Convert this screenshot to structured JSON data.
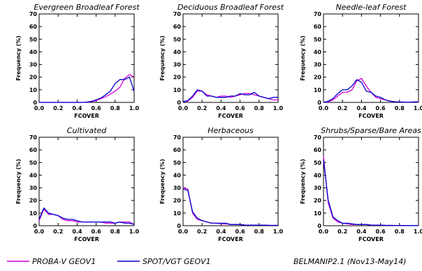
{
  "footer": {
    "series_labels": [
      "PROBA-V GEOV1",
      "SPOT/VGT GEOV1"
    ],
    "dataset_note": "BELMANIP2.1 (Nov13-May14)"
  },
  "colors": {
    "proba_v": "#d400d4",
    "spot_vgt": "#0000cc",
    "axes": "#000000"
  },
  "chart_data": [
    {
      "type": "line",
      "title": "Evergreen Broadleaf Forest",
      "xlabel": "FCOVER",
      "ylabel": "Frequency (%)",
      "xlim": [
        0,
        1
      ],
      "ylim": [
        0,
        70
      ],
      "xticks": [
        "0.0",
        "0.2",
        "0.4",
        "0.6",
        "0.8",
        "1.0"
      ],
      "yticks": [
        "0",
        "10",
        "20",
        "30",
        "40",
        "50",
        "60",
        "70"
      ],
      "x": [
        0,
        0.05,
        0.1,
        0.15,
        0.2,
        0.25,
        0.3,
        0.35,
        0.4,
        0.45,
        0.5,
        0.55,
        0.6,
        0.65,
        0.7,
        0.75,
        0.8,
        0.85,
        0.9,
        0.95,
        1.0
      ],
      "series": [
        {
          "name": "PROBA-V GEOV1",
          "values": [
            0,
            0,
            0,
            0,
            0,
            0,
            0,
            0,
            0,
            0,
            0.2,
            0.5,
            1.5,
            3,
            4.5,
            6.5,
            9,
            12,
            19,
            22,
            20
          ]
        },
        {
          "name": "SPOT/VGT GEOV1",
          "values": [
            0,
            0,
            0,
            0,
            0,
            0,
            0,
            0,
            0,
            0,
            0.3,
            0.8,
            2,
            3.5,
            6,
            9,
            15,
            18,
            18,
            20,
            9
          ]
        }
      ]
    },
    {
      "type": "line",
      "title": "Deciduous Broadleaf Forest",
      "xlabel": "FCOVER",
      "ylabel": "Frequency (%)",
      "xlim": [
        0,
        1
      ],
      "ylim": [
        0,
        70
      ],
      "xticks": [
        "0.0",
        "0.2",
        "0.4",
        "0.6",
        "0.8",
        "1.0"
      ],
      "yticks": [
        "0",
        "10",
        "20",
        "30",
        "40",
        "50",
        "60",
        "70"
      ],
      "x": [
        0,
        0.05,
        0.1,
        0.15,
        0.2,
        0.25,
        0.3,
        0.35,
        0.4,
        0.45,
        0.5,
        0.55,
        0.6,
        0.65,
        0.7,
        0.75,
        0.8,
        0.85,
        0.9,
        0.95,
        1.0
      ],
      "series": [
        {
          "name": "PROBA-V GEOV1",
          "values": [
            0.5,
            1,
            4,
            9,
            9,
            6,
            5,
            4,
            5,
            5,
            4,
            5,
            6,
            7,
            7,
            6,
            5,
            4,
            3,
            2,
            2
          ]
        },
        {
          "name": "SPOT/VGT GEOV1",
          "values": [
            0.5,
            1.5,
            5,
            10,
            9,
            5,
            5,
            4,
            4,
            4,
            5,
            5,
            7,
            6,
            6,
            8,
            5,
            4,
            3,
            4,
            4
          ]
        }
      ]
    },
    {
      "type": "line",
      "title": "Needle-leaf Forest",
      "xlabel": "FCOVER",
      "ylabel": "Frequency (%)",
      "xlim": [
        0,
        1
      ],
      "ylim": [
        0,
        70
      ],
      "xticks": [
        "0.0",
        "0.2",
        "0.4",
        "0.6",
        "0.8",
        "1.0"
      ],
      "yticks": [
        "0",
        "10",
        "20",
        "30",
        "40",
        "50",
        "60",
        "70"
      ],
      "x": [
        0,
        0.05,
        0.1,
        0.15,
        0.2,
        0.25,
        0.3,
        0.35,
        0.4,
        0.45,
        0.5,
        0.55,
        0.6,
        0.65,
        0.7,
        0.75,
        0.8,
        0.85,
        0.9,
        0.95,
        1.0
      ],
      "series": [
        {
          "name": "PROBA-V GEOV1",
          "values": [
            0,
            0.5,
            2,
            5,
            8,
            8,
            10,
            17,
            19,
            13,
            8,
            4,
            3,
            2,
            1,
            0.5,
            0.5,
            0.3,
            0.2,
            0.5,
            0.5
          ]
        },
        {
          "name": "SPOT/VGT GEOV1",
          "values": [
            0,
            1,
            3,
            7,
            10,
            10,
            13,
            18,
            16,
            9,
            8,
            5,
            4,
            2,
            1,
            0.5,
            0.3,
            0.2,
            0.2,
            0.3,
            0.3
          ]
        }
      ]
    },
    {
      "type": "line",
      "title": "Cultivated",
      "xlabel": "FCOVER",
      "ylabel": "Frequency (%)",
      "xlim": [
        0,
        1
      ],
      "ylim": [
        0,
        70
      ],
      "xticks": [
        "0.0",
        "0.2",
        "0.4",
        "0.6",
        "0.8",
        "1.0"
      ],
      "yticks": [
        "0",
        "10",
        "20",
        "30",
        "40",
        "50",
        "60",
        "70"
      ],
      "x": [
        0,
        0.05,
        0.1,
        0.15,
        0.2,
        0.25,
        0.3,
        0.35,
        0.4,
        0.45,
        0.5,
        0.55,
        0.6,
        0.65,
        0.7,
        0.75,
        0.8,
        0.85,
        0.9,
        0.95,
        1.0
      ],
      "series": [
        {
          "name": "PROBA-V GEOV1",
          "values": [
            4,
            13,
            9,
            9,
            8,
            5,
            4,
            4,
            3,
            3,
            3,
            3,
            3,
            3,
            2,
            2,
            2,
            3,
            3,
            3,
            1
          ]
        },
        {
          "name": "SPOT/VGT GEOV1",
          "values": [
            5,
            14,
            10,
            9,
            8,
            6,
            5,
            5,
            4,
            3,
            3,
            3,
            3,
            3,
            3,
            3,
            2,
            3,
            2,
            2,
            1
          ]
        }
      ]
    },
    {
      "type": "line",
      "title": "Herbaceous",
      "xlabel": "FCOVER",
      "ylabel": "Frequency (%)",
      "xlim": [
        0,
        1
      ],
      "ylim": [
        0,
        70
      ],
      "xticks": [
        "0.0",
        "0.2",
        "0.4",
        "0.6",
        "0.8",
        "1.0"
      ],
      "yticks": [
        "0",
        "10",
        "20",
        "30",
        "40",
        "50",
        "60",
        "70"
      ],
      "x": [
        0,
        0.05,
        0.1,
        0.15,
        0.2,
        0.25,
        0.3,
        0.35,
        0.4,
        0.45,
        0.5,
        0.55,
        0.6,
        0.65,
        0.7,
        0.75,
        0.8,
        0.85,
        0.9,
        0.95,
        1.0
      ],
      "series": [
        {
          "name": "PROBA-V GEOV1",
          "values": [
            30,
            29,
            10,
            5,
            4,
            3,
            2,
            2,
            1.5,
            1.5,
            1,
            1,
            1,
            0.5,
            0.5,
            0.5,
            0.5,
            0.5,
            0.3,
            0.3,
            0.3
          ]
        },
        {
          "name": "SPOT/VGT GEOV1",
          "values": [
            29,
            28,
            11,
            6,
            4,
            3,
            2,
            2,
            2,
            2,
            1,
            1,
            1,
            0.5,
            0.5,
            0.5,
            0.5,
            0.5,
            0.3,
            0.3,
            0.3
          ]
        }
      ]
    },
    {
      "type": "line",
      "title": "Shrubs/Sparse/Bare Areas",
      "xlabel": "FCOVER",
      "ylabel": "Frequency (%)",
      "xlim": [
        0,
        1
      ],
      "ylim": [
        0,
        70
      ],
      "xticks": [
        "0.0",
        "0.2",
        "0.4",
        "0.6",
        "0.8",
        "1.0"
      ],
      "yticks": [
        "0",
        "10",
        "20",
        "30",
        "40",
        "50",
        "60",
        "70"
      ],
      "x": [
        0,
        0.05,
        0.1,
        0.15,
        0.2,
        0.25,
        0.3,
        0.35,
        0.4,
        0.45,
        0.5,
        0.55,
        0.6,
        0.65,
        0.7,
        0.75,
        0.8,
        0.85,
        0.9,
        0.95,
        1.0
      ],
      "series": [
        {
          "name": "PROBA-V GEOV1",
          "values": [
            55,
            18,
            6,
            3,
            2,
            1.5,
            1,
            1,
            1,
            1,
            0.5,
            0.5,
            0.5,
            0.3,
            0.3,
            0.2,
            0.2,
            0.2,
            0.1,
            0.1,
            0.1
          ]
        },
        {
          "name": "SPOT/VGT GEOV1",
          "values": [
            52,
            20,
            7,
            4,
            2,
            2,
            1.5,
            1,
            1,
            1,
            0.5,
            0.5,
            0.5,
            0.3,
            0.3,
            0.2,
            0.2,
            0.2,
            0.1,
            0.1,
            0.1
          ]
        }
      ]
    }
  ]
}
